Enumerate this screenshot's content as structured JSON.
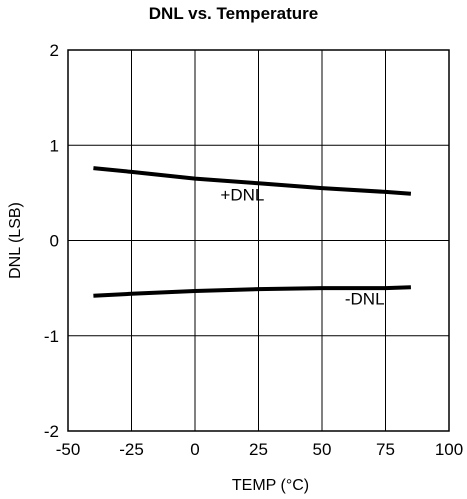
{
  "chart_data": {
    "type": "line",
    "title": "DNL vs. Temperature",
    "xlabel": "TEMP (°C)",
    "ylabel": "DNL (LSB)",
    "xlim": [
      -50,
      100
    ],
    "ylim": [
      -2,
      2
    ],
    "xticks": [
      -50,
      -25,
      0,
      25,
      50,
      75,
      100
    ],
    "yticks": [
      -2,
      -1,
      0,
      1,
      2
    ],
    "xtick_labels": [
      "-50",
      "-25",
      "0",
      "25",
      "50",
      "75",
      "100"
    ],
    "ytick_labels": [
      "-2",
      "-1",
      "0",
      "1",
      "2"
    ],
    "grid": true,
    "series": [
      {
        "name": "+DNL",
        "x": [
          -40,
          -25,
          0,
          25,
          50,
          75,
          85
        ],
        "y": [
          0.76,
          0.72,
          0.65,
          0.6,
          0.55,
          0.51,
          0.49
        ]
      },
      {
        "name": "-DNL",
        "x": [
          -40,
          -25,
          0,
          25,
          50,
          75,
          85
        ],
        "y": [
          -0.58,
          -0.56,
          -0.53,
          -0.51,
          -0.5,
          -0.5,
          -0.49
        ]
      }
    ],
    "annotations": [
      {
        "text": "+DNL",
        "x": 10,
        "y": 0.42
      },
      {
        "text": "-DNL",
        "x": 59,
        "y": -0.67
      }
    ]
  }
}
